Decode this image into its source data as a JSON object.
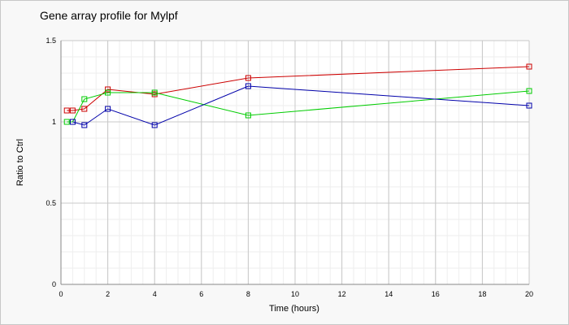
{
  "chart_data": {
    "type": "line",
    "title": "Gene array profile for Mylpf",
    "xlabel": "Time (hours)",
    "ylabel": "Ratio to Ctrl",
    "xlim": [
      0,
      20
    ],
    "ylim": [
      0,
      1.5
    ],
    "x_ticks": [
      0,
      2,
      4,
      6,
      8,
      10,
      12,
      14,
      16,
      18,
      20
    ],
    "y_ticks": [
      0,
      0.5,
      1,
      1.5
    ],
    "x_tick_labels": [
      "0",
      "2",
      "4",
      "6",
      "8",
      "10",
      "12",
      "14",
      "16",
      "18",
      "20"
    ],
    "y_tick_labels": [
      "0",
      "0.5",
      "1",
      "1.5"
    ],
    "grid": true,
    "series": [
      {
        "color": "#cc0000",
        "marker": "square",
        "x": [
          0.25,
          0.5,
          1,
          2,
          4,
          8,
          20
        ],
        "y": [
          1.07,
          1.07,
          1.08,
          1.2,
          1.17,
          1.27,
          1.34
        ]
      },
      {
        "color": "#00cc00",
        "marker": "square",
        "x": [
          0.25,
          0.5,
          1,
          2,
          4,
          8,
          20
        ],
        "y": [
          1.0,
          1.0,
          1.14,
          1.18,
          1.18,
          1.04,
          1.19
        ]
      },
      {
        "color": "#0000aa",
        "marker": "square",
        "x": [
          0.5,
          1,
          2,
          4,
          8,
          20
        ],
        "y": [
          1.0,
          0.98,
          1.08,
          0.98,
          1.22,
          1.1
        ]
      }
    ]
  }
}
